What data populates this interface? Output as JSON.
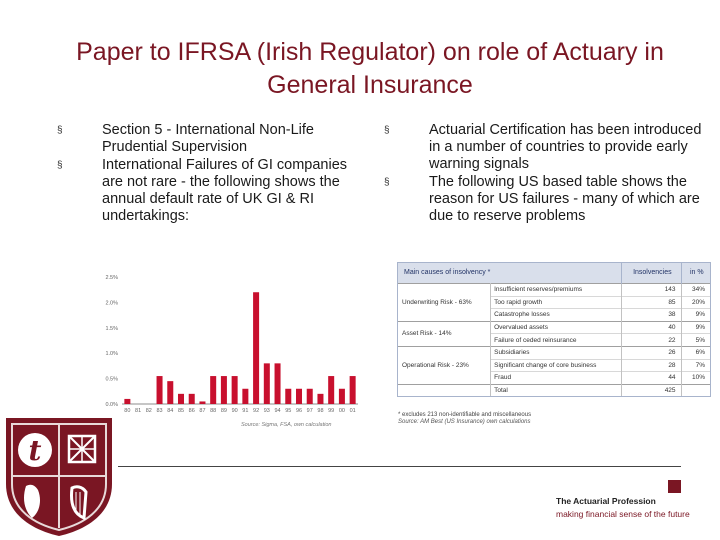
{
  "slide": {
    "title": "Paper to IFRSA (Irish Regulator) on role of Actuary in General Insurance"
  },
  "left_bullets": [
    "Section 5 - International Non-Life Prudential Supervision",
    "International Failures of GI companies are not rare - the following shows the annual default rate of UK GI & RI undertakings:"
  ],
  "right_bullets": [
    "Actuarial Certification has been introduced in a number of countries to provide early warning signals",
    "The following US based table shows the reason for US failures - many of which are due to reserve problems"
  ],
  "bullet_glyph": "§",
  "chart_data": {
    "type": "bar",
    "title": "",
    "xlabel": "",
    "ylabel": "",
    "categories": [
      "80",
      "81",
      "82",
      "83",
      "84",
      "85",
      "86",
      "87",
      "88",
      "89",
      "90",
      "91",
      "92",
      "93",
      "94",
      "95",
      "96",
      "97",
      "98",
      "99",
      "00",
      "01"
    ],
    "values": [
      0.1,
      0.0,
      0.0,
      0.55,
      0.45,
      0.2,
      0.2,
      0.05,
      0.55,
      0.55,
      0.55,
      0.3,
      2.2,
      0.8,
      0.8,
      0.3,
      0.3,
      0.3,
      0.2,
      0.55,
      0.3,
      0.55
    ],
    "yticks": [
      "0.0%",
      "0.5%",
      "1.0%",
      "1.5%",
      "2.0%",
      "2.5%"
    ],
    "ylim": [
      0,
      2.5
    ],
    "grid": false,
    "bar_color": "#c8102e",
    "source": "Source: Sigma, FSA, own calculation"
  },
  "table": {
    "headers": [
      "Main causes of insolvency *",
      "Insolvencies",
      "in %"
    ],
    "groups": [
      {
        "name": "Underwriting Risk - 63%",
        "rows": [
          {
            "cause": "Insufficient reserves/premiums",
            "insolvencies": "143",
            "pct": "34%"
          },
          {
            "cause": "Too rapid growth",
            "insolvencies": "85",
            "pct": "20%"
          },
          {
            "cause": "Catastrophe losses",
            "insolvencies": "38",
            "pct": "9%"
          }
        ]
      },
      {
        "name": "Asset Risk - 14%",
        "rows": [
          {
            "cause": "Overvalued assets",
            "insolvencies": "40",
            "pct": "9%"
          },
          {
            "cause": "Failure of ceded reinsurance",
            "insolvencies": "22",
            "pct": "5%"
          }
        ]
      },
      {
        "name": "Operational Risk - 23%",
        "rows": [
          {
            "cause": "Subsidiaries",
            "insolvencies": "26",
            "pct": "6%"
          },
          {
            "cause": "Significant change of core business",
            "insolvencies": "28",
            "pct": "7%"
          },
          {
            "cause": "Fraud",
            "insolvencies": "44",
            "pct": "10%"
          }
        ]
      }
    ],
    "total_label": "Total",
    "total_value": "425",
    "footnote": "* excludes 213 non-identifiable and miscellaneous",
    "source": "Source: AM Best (US Insurance) own calculations"
  },
  "footer": {
    "brand": "The Actuarial Profession",
    "tagline": "making financial sense of the future",
    "logo_letter": "t",
    "accent_color": "#7a1623"
  }
}
